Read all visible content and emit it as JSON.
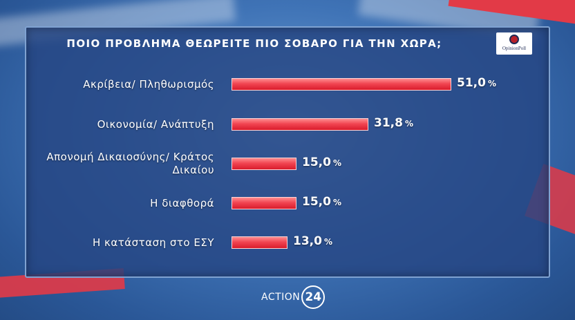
{
  "broadcaster": {
    "name": "ACTION",
    "number": "24"
  },
  "logo": {
    "text": "OpinionPoll"
  },
  "chart_data": {
    "type": "bar",
    "orientation": "horizontal",
    "title": "ΠΟΙΟ ΠΡΟΒΛΗΜΑ ΘΕΩΡΕΙΤΕ ΠΙΟ ΣΟΒΑΡΟ ΓΙΑ ΤΗΝ ΧΩΡΑ;",
    "categories": [
      "Ακρίβεια/ Πληθωρισμός",
      "Οικονομία/ Ανάπτυξη",
      "Απονομή Δικαιοσύνης/ Κράτος Δικαίου",
      "Η διαφθορά",
      "Η κατάσταση στο ΕΣΥ"
    ],
    "values": [
      51.0,
      31.8,
      15.0,
      15.0,
      13.0
    ],
    "value_labels": [
      "51,0",
      "31,8",
      "15,0",
      "15,0",
      "13,0"
    ],
    "unit": "%",
    "colors": {
      "bar": "#e8303d",
      "bar_highlight": "#ff8c8f"
    },
    "xlim": [
      0,
      51
    ]
  }
}
